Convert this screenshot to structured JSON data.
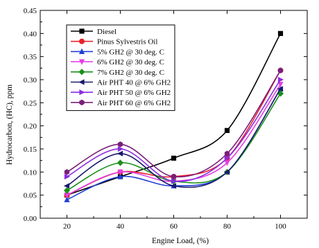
{
  "chart_data": {
    "type": "line",
    "title": "",
    "xlabel": "Engine Load, (%)",
    "ylabel": "Hydrocarbon, (HC), ppm",
    "x": [
      20,
      40,
      60,
      80,
      100
    ],
    "xlim": [
      10,
      110
    ],
    "ylim": [
      0.0,
      0.45
    ],
    "x_ticks": [
      "20",
      "40",
      "60",
      "80",
      "100"
    ],
    "y_ticks": [
      "0.00",
      "0.05",
      "0.10",
      "0.15",
      "0.20",
      "0.25",
      "0.30",
      "0.35",
      "0.40",
      "0.45"
    ],
    "grid": false,
    "legend_position": "top-left",
    "series": [
      {
        "name": "Diesel",
        "values": [
          0.05,
          0.09,
          0.13,
          0.19,
          0.4
        ],
        "color": "#000000",
        "marker": "square"
      },
      {
        "name": "Pinus Sylvestris Oil",
        "values": [
          0.05,
          0.1,
          0.09,
          0.13,
          0.32
        ],
        "color": "#e8202a",
        "marker": "circle"
      },
      {
        "name": "5% GH2 @ 30 deg. C",
        "values": [
          0.04,
          0.09,
          0.07,
          0.1,
          0.28
        ],
        "color": "#1f3fd6",
        "marker": "triangle-up"
      },
      {
        "name": "6% GH2 @ 30 deg. C",
        "values": [
          0.05,
          0.1,
          0.08,
          0.12,
          0.29
        ],
        "color": "#e43fe4",
        "marker": "triangle-down"
      },
      {
        "name": "7% GH2 @ 30 deg. C",
        "values": [
          0.06,
          0.12,
          0.08,
          0.1,
          0.27
        ],
        "color": "#1a8f1a",
        "marker": "diamond"
      },
      {
        "name": "Air PHT 40 @ 6% GH2",
        "values": [
          0.07,
          0.14,
          0.07,
          0.1,
          0.28
        ],
        "color": "#1a1a6e",
        "marker": "triangle-left"
      },
      {
        "name": "Air PHT 50 @ 6% GH2",
        "values": [
          0.09,
          0.15,
          0.08,
          0.13,
          0.3
        ],
        "color": "#8a2be2",
        "marker": "triangle-right"
      },
      {
        "name": "Air PHT 60 @ 6% GH2",
        "values": [
          0.1,
          0.16,
          0.09,
          0.14,
          0.32
        ],
        "color": "#7a1f7a",
        "marker": "hexagon"
      }
    ]
  }
}
